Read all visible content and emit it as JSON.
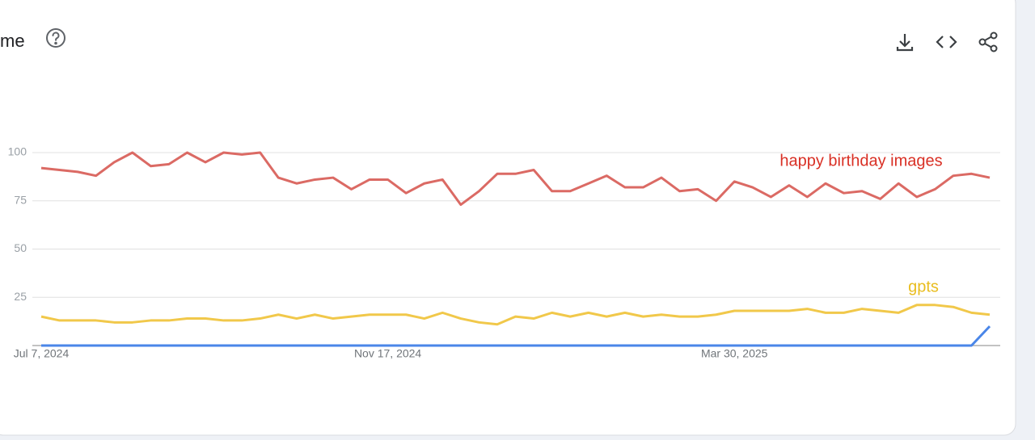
{
  "header": {
    "title": "me"
  },
  "chart_data": {
    "type": "line",
    "categories": [
      "Jul 7, 2024",
      null,
      null,
      null,
      null,
      null,
      null,
      null,
      null,
      null,
      null,
      null,
      null,
      null,
      null,
      null,
      null,
      null,
      null,
      "Nov 17, 2024",
      null,
      null,
      null,
      null,
      null,
      null,
      null,
      null,
      null,
      null,
      null,
      null,
      null,
      null,
      null,
      null,
      null,
      null,
      "Mar 30, 2025",
      null,
      null,
      null,
      null,
      null,
      null,
      null,
      null,
      null,
      null,
      null,
      null,
      null,
      null
    ],
    "ylim": [
      0,
      100
    ],
    "yticks": [
      25,
      50,
      75,
      100
    ],
    "grid": true,
    "series": [
      {
        "name": "happy birthday images",
        "color": "#db6a64",
        "values": [
          92,
          91,
          90,
          88,
          95,
          100,
          93,
          94,
          100,
          95,
          100,
          99,
          100,
          87,
          84,
          86,
          87,
          81,
          86,
          86,
          79,
          84,
          86,
          73,
          80,
          89,
          89,
          91,
          80,
          80,
          84,
          88,
          82,
          82,
          87,
          80,
          81,
          75,
          85,
          82,
          77,
          83,
          77,
          84,
          79,
          80,
          76,
          84,
          77,
          81,
          88,
          89,
          87
        ]
      },
      {
        "name": "gpts",
        "color": "#f1c84a",
        "values": [
          15,
          13,
          13,
          13,
          12,
          12,
          13,
          13,
          14,
          14,
          13,
          13,
          14,
          16,
          14,
          16,
          14,
          15,
          16,
          16,
          16,
          14,
          17,
          14,
          12,
          11,
          15,
          14,
          17,
          15,
          17,
          15,
          17,
          15,
          16,
          15,
          15,
          16,
          18,
          18,
          18,
          18,
          19,
          17,
          17,
          19,
          18,
          17,
          21,
          21,
          20,
          17,
          16
        ]
      },
      {
        "color": "#4a86e8",
        "values": [
          0,
          0,
          0,
          0,
          0,
          0,
          0,
          0,
          0,
          0,
          0,
          0,
          0,
          0,
          0,
          0,
          0,
          0,
          0,
          0,
          0,
          0,
          0,
          0,
          0,
          0,
          0,
          0,
          0,
          0,
          0,
          0,
          0,
          0,
          0,
          0,
          0,
          0,
          0,
          0,
          0,
          0,
          0,
          0,
          0,
          0,
          0,
          0,
          0,
          0,
          0,
          0,
          10
        ]
      }
    ]
  }
}
